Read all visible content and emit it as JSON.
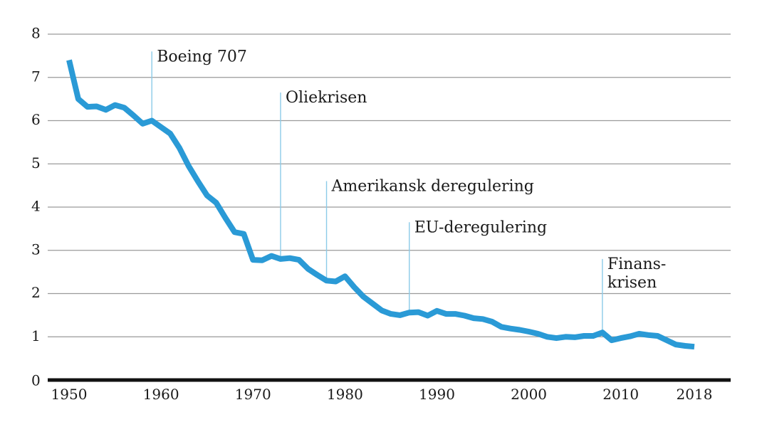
{
  "chart_data": {
    "type": "line",
    "title": "",
    "xlabel": "",
    "ylabel": "",
    "xlim": [
      1950,
      2018
    ],
    "ylim": [
      0,
      8
    ],
    "grid": true,
    "x_ticks": [
      "1950",
      "1960",
      "1970",
      "1980",
      "1990",
      "2000",
      "2010",
      "2018"
    ],
    "y_ticks": [
      "0",
      "1",
      "2",
      "3",
      "4",
      "5",
      "6",
      "7",
      "8"
    ],
    "colors": {
      "line": "#2a9ad6",
      "annotation": "#8ccbe8",
      "grid": "#9a9a9a",
      "baseline": "#111111"
    },
    "series": [
      {
        "x": [
          1950,
          1951,
          1952,
          1953,
          1954,
          1955,
          1956,
          1957,
          1958,
          1959,
          1960,
          1961,
          1962,
          1963,
          1964,
          1965,
          1966,
          1967,
          1968,
          1969,
          1970,
          1971,
          1972,
          1973,
          1974,
          1975,
          1976,
          1977,
          1978,
          1979,
          1980,
          1981,
          1982,
          1983,
          1984,
          1985,
          1986,
          1987,
          1988,
          1989,
          1990,
          1991,
          1992,
          1993,
          1994,
          1995,
          1996,
          1997,
          1998,
          1999,
          2000,
          2001,
          2002,
          2003,
          2004,
          2005,
          2006,
          2007,
          2008,
          2009,
          2010,
          2011,
          2012,
          2013,
          2014,
          2015,
          2016,
          2017,
          2018
        ],
        "y": [
          7.4,
          6.5,
          6.32,
          6.33,
          6.25,
          6.36,
          6.3,
          6.12,
          5.93,
          6.0,
          5.85,
          5.7,
          5.37,
          4.95,
          4.6,
          4.27,
          4.1,
          3.75,
          3.42,
          3.38,
          2.78,
          2.77,
          2.87,
          2.8,
          2.82,
          2.78,
          2.57,
          2.43,
          2.3,
          2.28,
          2.4,
          2.15,
          1.93,
          1.77,
          1.61,
          1.53,
          1.5,
          1.56,
          1.57,
          1.49,
          1.6,
          1.53,
          1.53,
          1.49,
          1.43,
          1.41,
          1.35,
          1.23,
          1.19,
          1.16,
          1.12,
          1.07,
          1.0,
          0.97,
          1.0,
          0.99,
          1.02,
          1.02,
          1.1,
          0.92,
          0.97,
          1.01,
          1.07,
          1.04,
          1.02,
          0.92,
          0.82,
          0.79,
          0.77
        ]
      }
    ],
    "annotations": [
      {
        "label": "Boeing 707",
        "x": 1959,
        "top": 7.6
      },
      {
        "label": "Oliekrisen",
        "x": 1973,
        "top": 6.65
      },
      {
        "label": "Amerikansk deregulering",
        "x": 1978,
        "top": 4.6
      },
      {
        "label": "EU-deregulering",
        "x": 1987,
        "top": 3.65
      },
      {
        "label": "Finans-\nkrisen",
        "x": 2008,
        "top": 2.8
      }
    ]
  }
}
